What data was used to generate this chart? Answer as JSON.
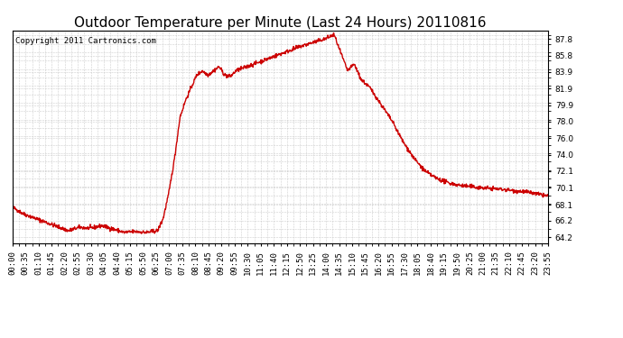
{
  "title": "Outdoor Temperature per Minute (Last 24 Hours) 20110816",
  "copyright_text": "Copyright 2011 Cartronics.com",
  "line_color": "#cc0000",
  "bg_color": "#ffffff",
  "plot_bg_color": "#ffffff",
  "grid_color": "#c8c8c8",
  "yticks": [
    64.2,
    66.2,
    68.1,
    70.1,
    72.1,
    74.0,
    76.0,
    78.0,
    79.9,
    81.9,
    83.9,
    85.8,
    87.8
  ],
  "ylim": [
    63.5,
    88.8
  ],
  "xtick_labels": [
    "00:00",
    "00:35",
    "01:10",
    "01:45",
    "02:20",
    "02:55",
    "03:30",
    "04:05",
    "04:40",
    "05:15",
    "05:50",
    "06:25",
    "07:00",
    "07:35",
    "08:10",
    "08:45",
    "09:20",
    "09:55",
    "10:30",
    "11:05",
    "11:40",
    "12:15",
    "12:50",
    "13:25",
    "14:00",
    "14:35",
    "15:10",
    "15:45",
    "16:20",
    "16:55",
    "17:30",
    "18:05",
    "18:40",
    "19:15",
    "19:50",
    "20:25",
    "21:00",
    "21:35",
    "22:10",
    "22:45",
    "23:20",
    "23:55"
  ],
  "title_fontsize": 11,
  "tick_fontsize": 6.5,
  "copyright_fontsize": 6.5,
  "line_width": 1.0,
  "figsize": [
    6.9,
    3.75
  ],
  "dpi": 100
}
